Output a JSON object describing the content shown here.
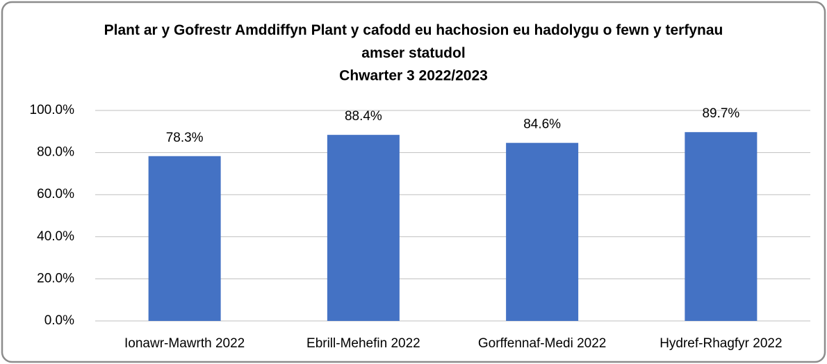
{
  "chart_data": {
    "type": "bar",
    "title": "Plant ar y Gofrestr Amddiffyn Plant y cafodd eu hachosion eu hadolygu o fewn y terfynau amser statudol",
    "subtitle": "Chwarter 3 2022/2023",
    "categories": [
      "Ionawr-Mawrth 2022",
      "Ebrill-Mehefin 2022",
      "Gorffennaf-Medi 2022",
      "Hydref-Rhagfyr 2022"
    ],
    "values": [
      78.3,
      88.4,
      84.6,
      89.7
    ],
    "value_labels": [
      "78.3%",
      "88.4%",
      "84.6%",
      "89.7%"
    ],
    "color": "#4472c4",
    "ylim": [
      0,
      100
    ],
    "yticks": [
      {
        "value": 0,
        "label": "0.0%"
      },
      {
        "value": 20,
        "label": "20.0%"
      },
      {
        "value": 40,
        "label": "40.0%"
      },
      {
        "value": 60,
        "label": "60.0%"
      },
      {
        "value": 80,
        "label": "80.0%"
      },
      {
        "value": 100,
        "label": "100.0%"
      }
    ],
    "grid": true
  }
}
